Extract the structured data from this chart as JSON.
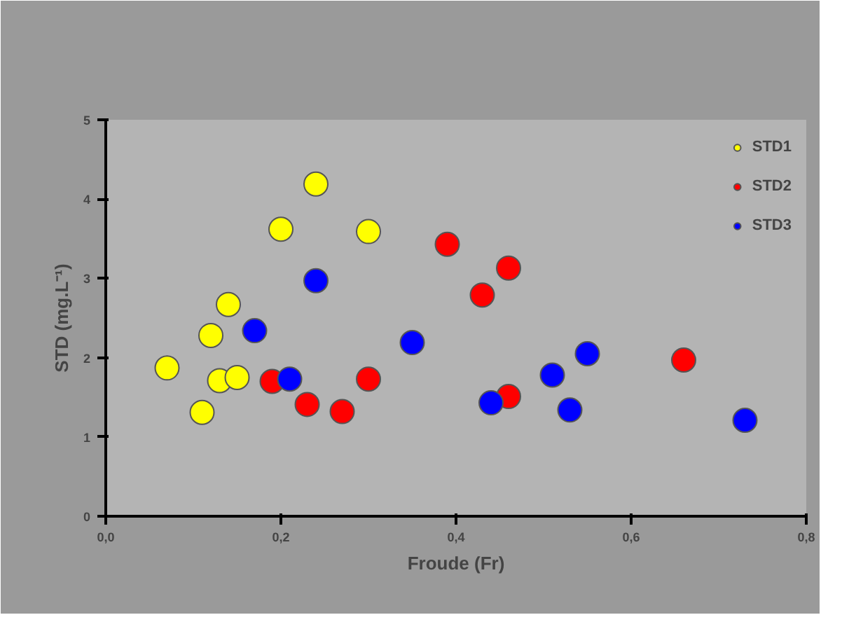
{
  "chart_data": {
    "type": "scatter",
    "xlabel": "Froude (Fr)",
    "ylabel": "STD (mg.L⁻¹)",
    "xlim": [
      0,
      0.8
    ],
    "ylim": [
      0,
      5
    ],
    "xticks": [
      {
        "value": 0,
        "label": "0,0"
      },
      {
        "value": 0.2,
        "label": "0,2"
      },
      {
        "value": 0.4,
        "label": "0,4"
      },
      {
        "value": 0.6,
        "label": "0,6"
      },
      {
        "value": 0.8,
        "label": "0,8"
      }
    ],
    "yticks": [
      0,
      1,
      2,
      3,
      4,
      5
    ],
    "grid": false,
    "legend": "right",
    "marker": "circle",
    "series": [
      {
        "name": "STD1",
        "color": "#ffff00",
        "x": [
          0.07,
          0.11,
          0.12,
          0.13,
          0.14,
          0.15,
          0.2,
          0.24,
          0.3
        ],
        "values": [
          1.87,
          1.31,
          2.28,
          1.71,
          2.67,
          1.75,
          3.62,
          4.19,
          3.59
        ]
      },
      {
        "name": "STD2",
        "color": "#ff0000",
        "x": [
          0.19,
          0.23,
          0.27,
          0.3,
          0.39,
          0.43,
          0.46,
          0.46,
          0.66
        ],
        "values": [
          1.7,
          1.41,
          1.32,
          1.73,
          3.43,
          2.79,
          3.13,
          1.51,
          1.97
        ]
      },
      {
        "name": "STD3",
        "color": "#0000ff",
        "x": [
          0.17,
          0.21,
          0.24,
          0.35,
          0.44,
          0.51,
          0.55,
          0.53,
          0.73
        ],
        "values": [
          2.34,
          1.73,
          2.97,
          2.19,
          1.43,
          1.78,
          2.05,
          1.34,
          1.21
        ]
      }
    ]
  }
}
